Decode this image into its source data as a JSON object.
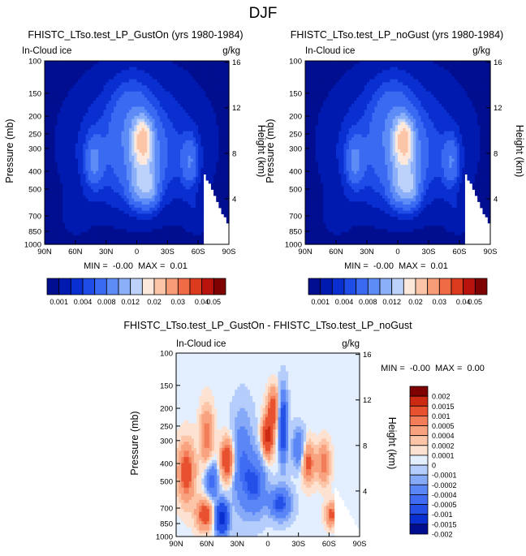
{
  "figure": {
    "suptitle": "DJF",
    "units": "g/kg",
    "field_label": "In-Cloud ice"
  },
  "chart_data": [
    {
      "type": "heatmap",
      "id": "panel-gust-on",
      "title": "FHISTC_LTso.test_LP_GustOn (yrs 1980-1984)",
      "field": "In-Cloud ice",
      "units": "g/kg",
      "xlabel": "",
      "ylabel": "Pressure (mb)",
      "y2label": "Height (km)",
      "x_ticks": [
        "90N",
        "60N",
        "30N",
        "0",
        "30S",
        "60S",
        "90S"
      ],
      "x_range": [
        90,
        -90
      ],
      "y_ticks": [
        100,
        150,
        200,
        250,
        300,
        400,
        500,
        700,
        850,
        1000
      ],
      "y2_ticks": [
        16,
        12,
        8,
        4
      ],
      "ylim": [
        1000,
        100
      ],
      "stats": "MIN =  -0.00  MAX =  0.01",
      "colorbar_levels": [
        "0.001",
        "0.004",
        "0.008",
        "0.012",
        "0.02",
        "0.03",
        "0.04",
        "0.05"
      ],
      "max_location": {
        "lat": -8,
        "p": 240
      }
    },
    {
      "type": "heatmap",
      "id": "panel-no-gust",
      "title": "FHISTC_LTso.test_LP_noGust (yrs 1980-1984)",
      "field": "In-Cloud ice",
      "units": "g/kg",
      "xlabel": "",
      "ylabel": "Pressure (mb)",
      "y2label": "Height (km)",
      "x_ticks": [
        "90N",
        "60N",
        "30N",
        "0",
        "30S",
        "60S",
        "90S"
      ],
      "x_range": [
        90,
        -90
      ],
      "y_ticks": [
        100,
        150,
        200,
        250,
        300,
        400,
        500,
        700,
        850,
        1000
      ],
      "y2_ticks": [
        16,
        12,
        8,
        4
      ],
      "ylim": [
        1000,
        100
      ],
      "stats": "MIN =  -0.00  MAX =  0.01",
      "colorbar_levels": [
        "0.001",
        "0.004",
        "0.008",
        "0.012",
        "0.02",
        "0.03",
        "0.04",
        "0.05"
      ],
      "max_location": {
        "lat": -8,
        "p": 240
      }
    },
    {
      "type": "heatmap",
      "id": "panel-diff",
      "title": "FHISTC_LTso.test_LP_GustOn - FHISTC_LTso.test_LP_noGust",
      "field": "In-Cloud ice",
      "units": "g/kg",
      "xlabel": "",
      "ylabel": "Pressure (mb)",
      "y2label": "Height (km)",
      "x_ticks": [
        "90N",
        "60N",
        "30N",
        "0",
        "30S",
        "60S",
        "90S"
      ],
      "x_range": [
        90,
        -90
      ],
      "y_ticks": [
        100,
        150,
        200,
        250,
        300,
        400,
        500,
        700,
        850,
        1000
      ],
      "y2_ticks": [
        16,
        12,
        8,
        4
      ],
      "ylim": [
        1000,
        100
      ],
      "stats": "MIN =  -0.00  MAX =  0.00",
      "colorbar_levels": [
        "0.002",
        "0.0015",
        "0.001",
        "0.0005",
        "0.0004",
        "0.0002",
        "0.0001",
        "0",
        "-0.0001",
        "-0.0002",
        "-0.0004",
        "-0.0005",
        "-0.001",
        "-0.0015",
        "-0.002"
      ]
    }
  ],
  "colors": {
    "seq": [
      "#000e8f",
      "#001ab0",
      "#0a2fd0",
      "#1f4ce6",
      "#3b6af2",
      "#5e8cf7",
      "#8caff9",
      "#bcd2fb",
      "#fde8dc",
      "#fcc5a7",
      "#f89c77",
      "#ef6b45",
      "#dc3b1e",
      "#b8140d",
      "#7e0202"
    ],
    "div": [
      "#000e8f",
      "#0a2fd0",
      "#2450e8",
      "#3f6cf2",
      "#5b86f6",
      "#86a9f8",
      "#b5cdfb",
      "#e3efff",
      "#fde2d2",
      "#fcc5a7",
      "#f9a27f",
      "#f37d58",
      "#e8512f",
      "#cc2a12",
      "#7e0202"
    ]
  }
}
